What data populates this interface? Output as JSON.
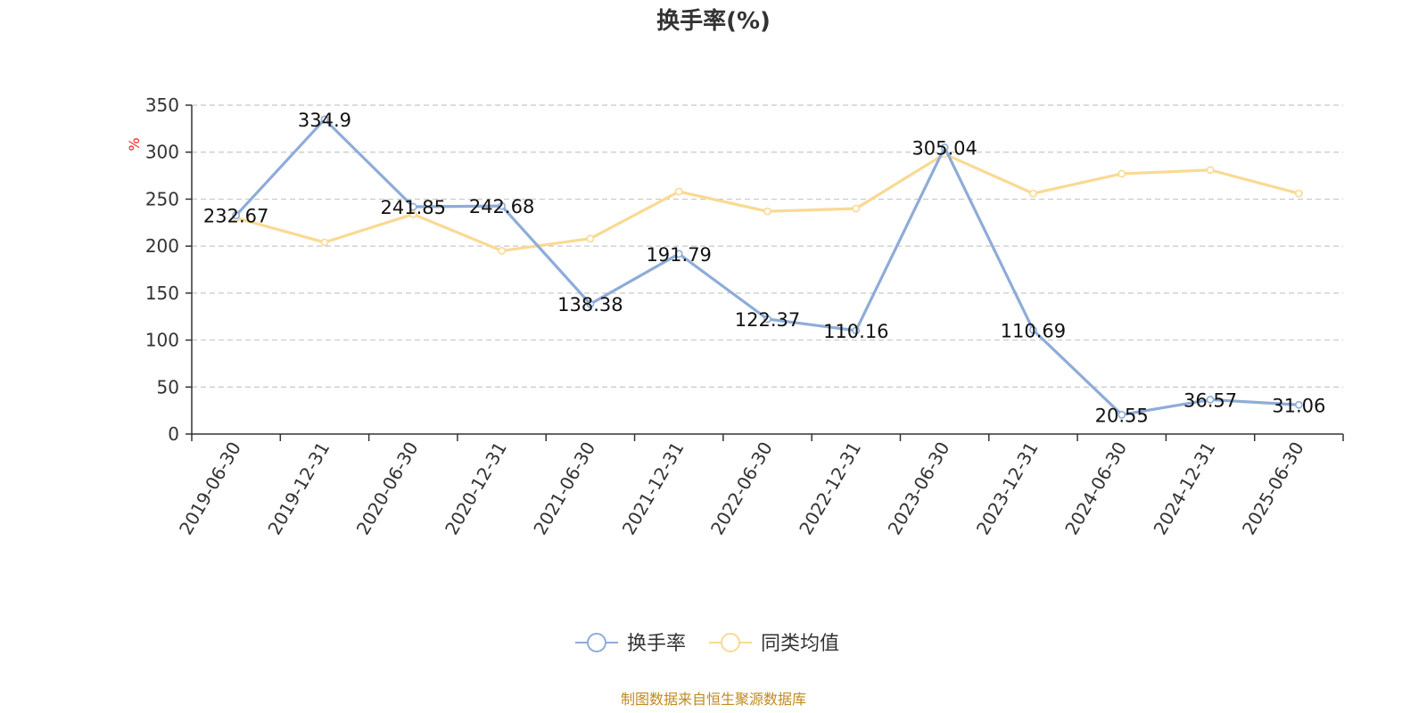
{
  "chart_data": {
    "type": "line",
    "title": "换手率(%)",
    "ylabel": "%",
    "ylim": [
      0,
      350
    ],
    "yticks": [
      0,
      50,
      100,
      150,
      200,
      250,
      300,
      350
    ],
    "grid": true,
    "legend_position": "bottom",
    "categories": [
      "2019-06-30",
      "2019-12-31",
      "2020-06-30",
      "2020-12-31",
      "2021-06-30",
      "2021-12-31",
      "2022-06-30",
      "2022-12-31",
      "2023-06-30",
      "2023-12-31",
      "2024-06-30",
      "2024-12-31",
      "2025-06-30"
    ],
    "series": [
      {
        "name": "换手率",
        "color": "#8eacd8",
        "show_labels": true,
        "values": [
          232.67,
          334.9,
          241.85,
          242.68,
          138.38,
          191.79,
          122.37,
          110.16,
          305.04,
          110.69,
          20.55,
          36.57,
          31.06
        ]
      },
      {
        "name": "同类均值",
        "color": "#fad993",
        "show_labels": false,
        "values": [
          230,
          204,
          234,
          195,
          208,
          258,
          237,
          240,
          298,
          256,
          277,
          281,
          256
        ]
      }
    ]
  },
  "source": "制图数据来自恒生聚源数据库"
}
